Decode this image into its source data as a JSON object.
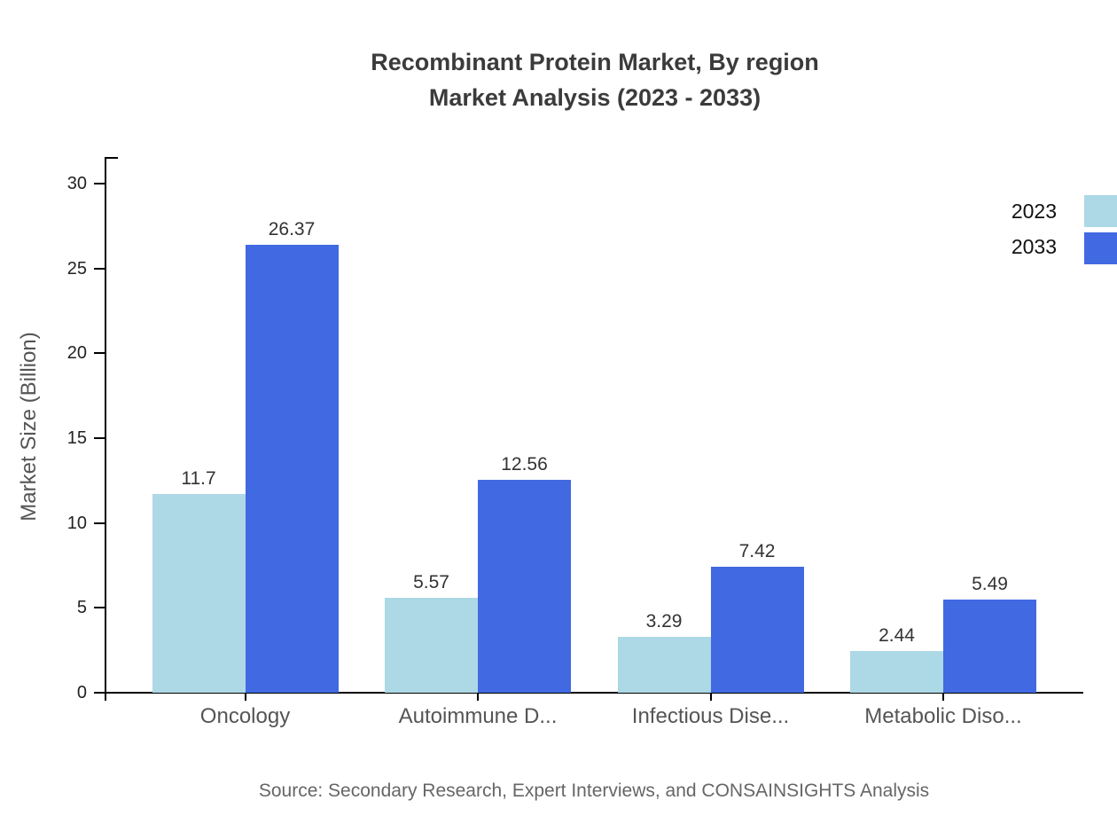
{
  "title": {
    "line1": "Recombinant Protein Market, By region",
    "line2": "Market Analysis (2023 - 2033)"
  },
  "ylabel": "Market Size (Billion)",
  "source": "Source: Secondary Research, Expert Interviews, and CONSAINSIGHTS Analysis",
  "legend": [
    {
      "label": "2023",
      "color": "#ADD8E6"
    },
    {
      "label": "2033",
      "color": "#4169E1"
    }
  ],
  "colors": {
    "series_2023": "#ADD8E6",
    "series_2033": "#4169E1",
    "axis": "#000000",
    "title_text": "#3b3b3b",
    "category_text": "#555555",
    "value_text": "#333333",
    "source_text": "#666666"
  },
  "chart_data": {
    "type": "bar",
    "categories": [
      "Oncology",
      "Autoimmune D...",
      "Infectious Dise...",
      "Metabolic Diso..."
    ],
    "series": [
      {
        "name": "2023",
        "color": "#ADD8E6",
        "values": [
          11.7,
          5.57,
          3.29,
          2.44
        ]
      },
      {
        "name": "2033",
        "color": "#4169E1",
        "values": [
          26.37,
          12.56,
          7.42,
          5.49
        ]
      }
    ],
    "title": "Recombinant Protein Market, By region Market Analysis (2023 - 2033)",
    "xlabel": "",
    "ylabel": "Market Size (Billion)",
    "ylim": [
      0,
      30
    ],
    "yticks": [
      0,
      5,
      10,
      15,
      20,
      25,
      30
    ],
    "grid": false,
    "legend_position": "top-right"
  }
}
